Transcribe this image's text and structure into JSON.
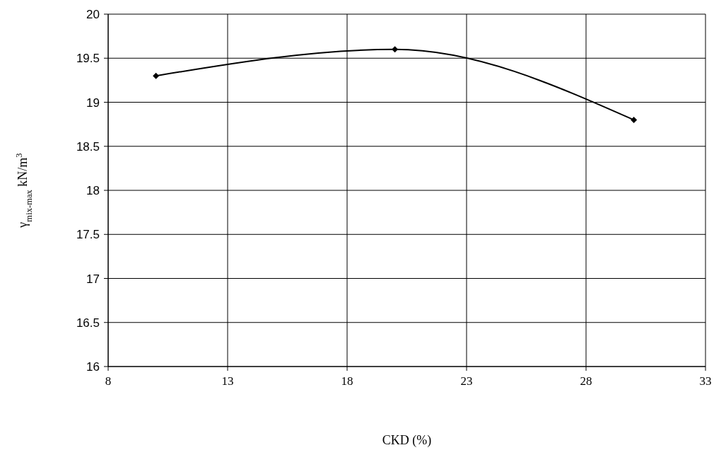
{
  "chart_data": {
    "type": "line",
    "xlabel": "CKD (%)",
    "ylabel": "γ$_{mix-max}$ kN/m$^{3}$",
    "x": [
      10,
      20,
      30
    ],
    "series": [
      {
        "color": "#000000",
        "values": [
          19.3,
          19.6,
          18.8
        ]
      }
    ],
    "xlim": [
      8,
      33
    ],
    "xticks": [
      8,
      13,
      18,
      23,
      28,
      33
    ],
    "ylim": [
      16,
      20
    ],
    "yticks": [
      16,
      16.5,
      17,
      17.5,
      18,
      18.5,
      19,
      19.5,
      20
    ],
    "grid": true,
    "marker": "diamond",
    "line_style": "solid"
  }
}
